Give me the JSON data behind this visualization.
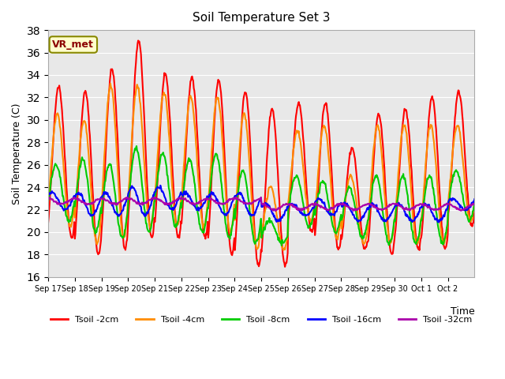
{
  "title": "Soil Temperature Set 3",
  "xlabel": "Time",
  "ylabel": "Soil Temperature (C)",
  "ylim": [
    16,
    38
  ],
  "yticks": [
    16,
    18,
    20,
    22,
    24,
    26,
    28,
    30,
    32,
    34,
    36,
    38
  ],
  "x_labels": [
    "Sep 17",
    "Sep 18",
    "Sep 19",
    "Sep 20",
    "Sep 21",
    "Sep 22",
    "Sep 23",
    "Sep 24",
    "Sep 25",
    "Sep 26",
    "Sep 27",
    "Sep 28",
    "Sep 29",
    "Sep 30",
    "Oct 1",
    "Oct 2"
  ],
  "annotation_text": "VR_met",
  "annotation_bg": "#FFFFCC",
  "annotation_border": "#888800",
  "colors": {
    "Tsoil -2cm": "#FF0000",
    "Tsoil -4cm": "#FF8C00",
    "Tsoil -8cm": "#00CC00",
    "Tsoil -16cm": "#0000FF",
    "Tsoil -32cm": "#AA00AA"
  },
  "bg_color": "#E8E8E8",
  "line_width": 1.5,
  "num_days": 16,
  "points_per_day": 48
}
